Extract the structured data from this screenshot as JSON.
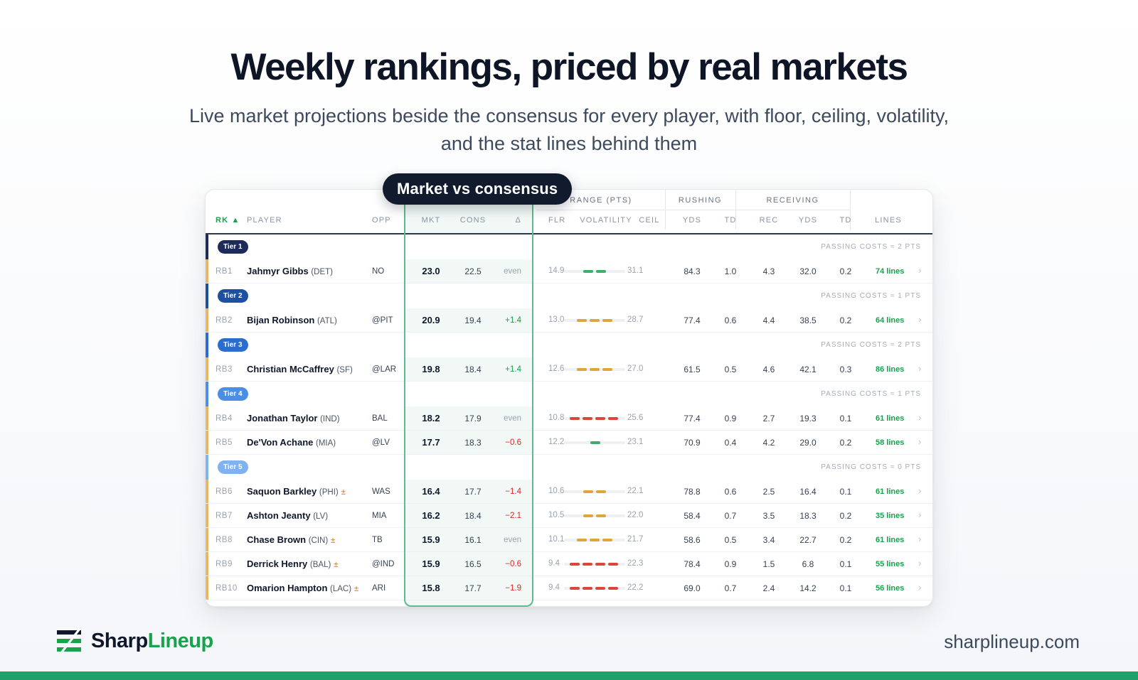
{
  "hero": {
    "title": "Weekly rankings, priced by real markets",
    "subtitle": "Live market projections beside the consensus for every player, with floor, ceiling, volatility, and the stat lines behind them"
  },
  "callout": "Market vs consensus",
  "table": {
    "group_headers": {
      "range": "RANGE (PTS)",
      "rushing": "RUSHING",
      "receiving": "RECEIVING"
    },
    "columns": {
      "rk": "RK ▲",
      "player": "PLAYER",
      "opp": "OPP",
      "mkt": "MKT",
      "cons": "CONS",
      "delta": "Δ",
      "flr": "FLR",
      "volatility": "VOLATILITY",
      "ceil": "CEIL",
      "rush_yds": "YDS",
      "rush_td": "TD",
      "rec": "REC",
      "rec_yds": "YDS",
      "rec_td": "TD",
      "lines": "LINES"
    },
    "rows": [
      {
        "type": "tier",
        "label": "Tier 1",
        "note": "PASSING COSTS ≈ 2 PTS",
        "color": "#1e2a5a"
      },
      {
        "type": "player",
        "rank": "RB1",
        "name": "Jahmyr Gibbs",
        "team": "(DET)",
        "flag": "",
        "opp": "NO",
        "mkt": "23.0",
        "cons": "22.5",
        "delta": "even",
        "delta_kind": "even",
        "flr": "14.9",
        "vol_level": 2,
        "vol_color": "#3fae6b",
        "ceil": "31.1",
        "rush_yds": "84.3",
        "rush_td": "1.0",
        "rec": "4.3",
        "rec_yds": "32.0",
        "rec_td": "0.2",
        "lines": "74 lines"
      },
      {
        "type": "tier",
        "label": "Tier 2",
        "note": "PASSING COSTS ≈ 1 PTS",
        "color": "#1f4fa0"
      },
      {
        "type": "player",
        "rank": "RB2",
        "name": "Bijan Robinson",
        "team": "(ATL)",
        "flag": "",
        "opp": "@PIT",
        "mkt": "20.9",
        "cons": "19.4",
        "delta": "+1.4",
        "delta_kind": "pos",
        "flr": "13.0",
        "vol_level": 3,
        "vol_color": "#e0a53a",
        "ceil": "28.7",
        "rush_yds": "77.4",
        "rush_td": "0.6",
        "rec": "4.4",
        "rec_yds": "38.5",
        "rec_td": "0.2",
        "lines": "64 lines"
      },
      {
        "type": "tier",
        "label": "Tier 3",
        "note": "PASSING COSTS ≈ 2 PTS",
        "color": "#2b6cd1"
      },
      {
        "type": "player",
        "rank": "RB3",
        "name": "Christian McCaffrey",
        "team": "(SF)",
        "flag": "",
        "opp": "@LAR",
        "mkt": "19.8",
        "cons": "18.4",
        "delta": "+1.4",
        "delta_kind": "pos",
        "flr": "12.6",
        "vol_level": 3,
        "vol_color": "#e0a53a",
        "ceil": "27.0",
        "rush_yds": "61.5",
        "rush_td": "0.5",
        "rec": "4.6",
        "rec_yds": "42.1",
        "rec_td": "0.3",
        "lines": "86 lines"
      },
      {
        "type": "tier",
        "label": "Tier 4",
        "note": "PASSING COSTS ≈ 1 PTS",
        "color": "#4a8ee6"
      },
      {
        "type": "player",
        "rank": "RB4",
        "name": "Jonathan Taylor",
        "team": "(IND)",
        "flag": "",
        "opp": "BAL",
        "mkt": "18.2",
        "cons": "17.9",
        "delta": "even",
        "delta_kind": "even",
        "flr": "10.8",
        "vol_level": 4,
        "vol_color": "#d9463b",
        "ceil": "25.6",
        "rush_yds": "77.4",
        "rush_td": "0.9",
        "rec": "2.7",
        "rec_yds": "19.3",
        "rec_td": "0.1",
        "lines": "61 lines"
      },
      {
        "type": "player",
        "rank": "RB5",
        "name": "De'Von Achane",
        "team": "(MIA)",
        "flag": "",
        "opp": "@LV",
        "mkt": "17.7",
        "cons": "18.3",
        "delta": "−0.6",
        "delta_kind": "neg",
        "flr": "12.2",
        "vol_level": 1,
        "vol_color": "#3fae6b",
        "ceil": "23.1",
        "rush_yds": "70.9",
        "rush_td": "0.4",
        "rec": "4.2",
        "rec_yds": "29.0",
        "rec_td": "0.2",
        "lines": "58 lines"
      },
      {
        "type": "tier",
        "label": "Tier 5",
        "note": "PASSING COSTS ≈ 0 PTS",
        "color": "#7fb2ef"
      },
      {
        "type": "player",
        "rank": "RB6",
        "name": "Saquon Barkley",
        "team": "(PHI)",
        "flag": "±",
        "opp": "WAS",
        "mkt": "16.4",
        "cons": "17.7",
        "delta": "−1.4",
        "delta_kind": "neg",
        "flr": "10.6",
        "vol_level": 2,
        "vol_color": "#e0a53a",
        "ceil": "22.1",
        "rush_yds": "78.8",
        "rush_td": "0.6",
        "rec": "2.5",
        "rec_yds": "16.4",
        "rec_td": "0.1",
        "lines": "61 lines"
      },
      {
        "type": "player",
        "rank": "RB7",
        "name": "Ashton Jeanty",
        "team": "(LV)",
        "flag": "",
        "opp": "MIA",
        "mkt": "16.2",
        "cons": "18.4",
        "delta": "−2.1",
        "delta_kind": "neg",
        "flr": "10.5",
        "vol_level": 2,
        "vol_color": "#e0a53a",
        "ceil": "22.0",
        "rush_yds": "58.4",
        "rush_td": "0.7",
        "rec": "3.5",
        "rec_yds": "18.3",
        "rec_td": "0.2",
        "lines": "35 lines"
      },
      {
        "type": "player",
        "rank": "RB8",
        "name": "Chase Brown",
        "team": "(CIN)",
        "flag": "±",
        "opp": "TB",
        "mkt": "15.9",
        "cons": "16.1",
        "delta": "even",
        "delta_kind": "even",
        "flr": "10.1",
        "vol_level": 3,
        "vol_color": "#e0a53a",
        "ceil": "21.7",
        "rush_yds": "58.6",
        "rush_td": "0.5",
        "rec": "3.4",
        "rec_yds": "22.7",
        "rec_td": "0.2",
        "lines": "61 lines"
      },
      {
        "type": "player",
        "rank": "RB9",
        "name": "Derrick Henry",
        "team": "(BAL)",
        "flag": "±",
        "opp": "@IND",
        "mkt": "15.9",
        "cons": "16.5",
        "delta": "−0.6",
        "delta_kind": "neg",
        "flr": "9.4",
        "vol_level": 4,
        "vol_color": "#d9463b",
        "ceil": "22.3",
        "rush_yds": "78.4",
        "rush_td": "0.9",
        "rec": "1.5",
        "rec_yds": "6.8",
        "rec_td": "0.1",
        "lines": "55 lines"
      },
      {
        "type": "player",
        "rank": "RB10",
        "name": "Omarion Hampton",
        "team": "(LAC)",
        "flag": "±",
        "opp": "ARI",
        "mkt": "15.8",
        "cons": "17.7",
        "delta": "−1.9",
        "delta_kind": "neg",
        "flr": "9.4",
        "vol_level": 4,
        "vol_color": "#d9463b",
        "ceil": "22.2",
        "rush_yds": "69.0",
        "rush_td": "0.7",
        "rec": "2.4",
        "rec_yds": "14.2",
        "rec_td": "0.1",
        "lines": "56 lines"
      }
    ]
  },
  "brand": {
    "sharp": "Sharp",
    "lineup": "Lineup",
    "url": "sharplineup.com"
  },
  "colors": {
    "accent_green": "#16a34a",
    "player_row_accent": "#e6b661",
    "highlight_outline": "#5dbb8c"
  }
}
